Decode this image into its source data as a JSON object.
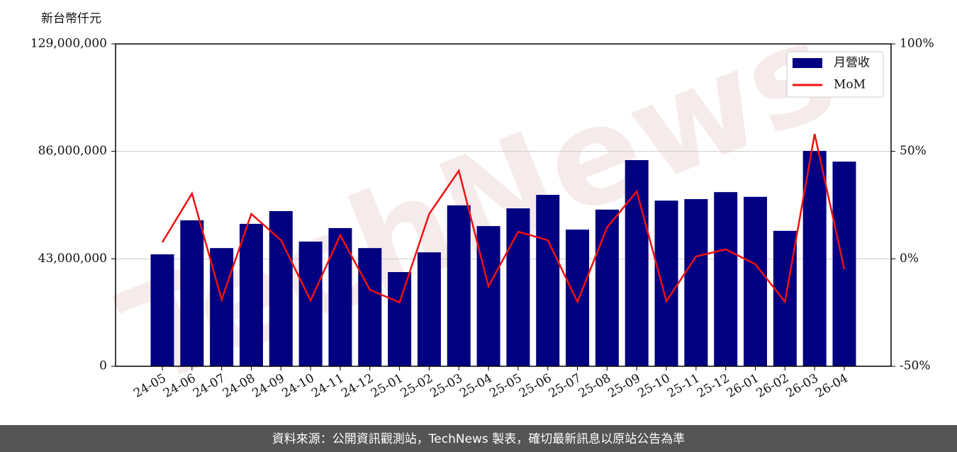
{
  "chart_data": {
    "type": "bar-line",
    "y_label": "新台幣仟元",
    "watermark": "TechNews",
    "source": "資料來源：公開資訊觀測站，TechNews 製表，確切最新訊息以原站公告為準",
    "categories": [
      "24-05",
      "24-06",
      "24-07",
      "24-08",
      "24-09",
      "24-10",
      "24-11",
      "24-12",
      "25-01",
      "25-02",
      "25-03",
      "25-04",
      "25-05",
      "25-06",
      "25-07",
      "25-08",
      "25-09",
      "25-10",
      "25-11",
      "25-12",
      "26-01",
      "26-02",
      "26-03",
      "26-04"
    ],
    "series": [
      {
        "name": "月營收",
        "color": "#000080",
        "type": "bar",
        "values": [
          44800000,
          58400000,
          47300000,
          57000000,
          62100000,
          49900000,
          55300000,
          47300000,
          37700000,
          45600000,
          64400000,
          56100000,
          63200000,
          68600000,
          54700000,
          62700000,
          82500000,
          66300000,
          66900000,
          69700000,
          67800000,
          54200000,
          86200000,
          81900000
        ]
      },
      {
        "name": "MoM",
        "color": "#ee1111",
        "type": "line",
        "axis": "y2",
        "values": [
          7.7,
          30.4,
          -19.0,
          20.9,
          8.7,
          -19.4,
          11.0,
          -14.4,
          -20.3,
          20.9,
          41.0,
          -12.8,
          12.6,
          8.7,
          -20.0,
          14.6,
          31.4,
          -19.7,
          1.1,
          4.4,
          -2.5,
          -20.0,
          58.1,
          -4.8
        ]
      }
    ],
    "ylim": [
      0,
      129000000
    ],
    "yticks": [
      {
        "value": 0,
        "label": "0"
      },
      {
        "value": 43000000,
        "label": "43,000,000"
      },
      {
        "value": 86000000,
        "label": "86,000,000"
      },
      {
        "value": 129000000,
        "label": "129,000,000"
      }
    ],
    "y2lim": [
      -50,
      100
    ],
    "y2ticks": [
      {
        "value": -50,
        "label": "-50%"
      },
      {
        "value": 0,
        "label": "0%"
      },
      {
        "value": 50,
        "label": "50%"
      },
      {
        "value": 100,
        "label": "100%"
      }
    ],
    "grid": true,
    "legend": "upper right"
  }
}
